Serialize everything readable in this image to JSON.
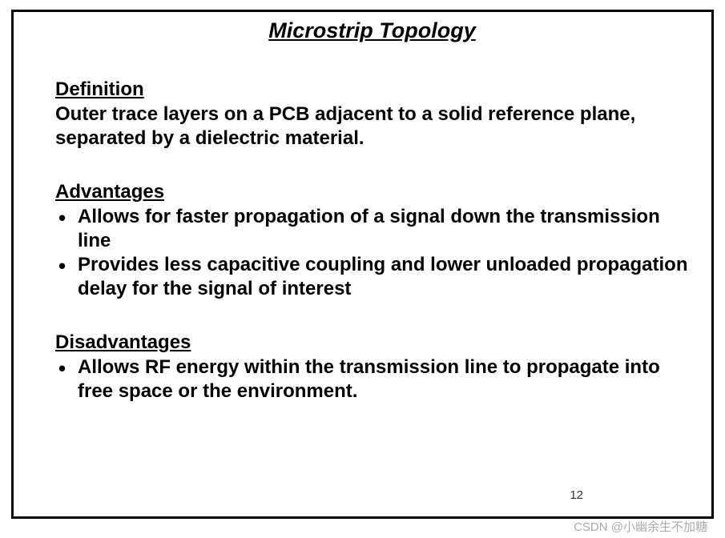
{
  "slide": {
    "title": "Microstrip Topology",
    "sections": {
      "definition": {
        "heading": "Definition",
        "text": "Outer trace layers on a PCB adjacent to a solid reference plane, separated by a dielectric material."
      },
      "advantages": {
        "heading": "Advantages",
        "items": [
          "Allows for faster propagation of a signal down the transmission line",
          "Provides less capacitive coupling and lower unloaded propagation delay for the signal of interest"
        ]
      },
      "disadvantages": {
        "heading": "Disadvantages",
        "items": [
          "Allows RF energy within the transmission line to propagate into free space or the environment."
        ]
      }
    },
    "page_number": "12",
    "watermark": "CSDN @小幽余生不加糖"
  },
  "styling": {
    "border_color": "#000000",
    "border_width": 3,
    "background_color": "#ffffff",
    "text_color": "#000000",
    "title_fontsize": 27,
    "heading_fontsize": 24,
    "body_fontsize": 24,
    "page_number_fontsize": 15,
    "watermark_color": "rgba(100,100,100,0.55)",
    "font_family": "Arial"
  }
}
